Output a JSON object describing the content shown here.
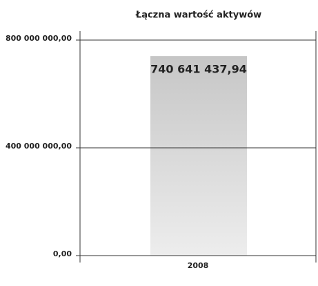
{
  "chart_data": {
    "type": "bar",
    "title": "Łączna wartość aktywów",
    "categories": [
      "2008"
    ],
    "values": [
      740641437.94
    ],
    "value_labels": [
      "740 641 437,94"
    ],
    "ylim": [
      0,
      800000000
    ],
    "yticks": [
      {
        "value": 0,
        "label": "0,00"
      },
      {
        "value": 400000000,
        "label": "400 000 000,00"
      },
      {
        "value": 800000000,
        "label": "800 000 000,00"
      }
    ],
    "grid": true
  }
}
